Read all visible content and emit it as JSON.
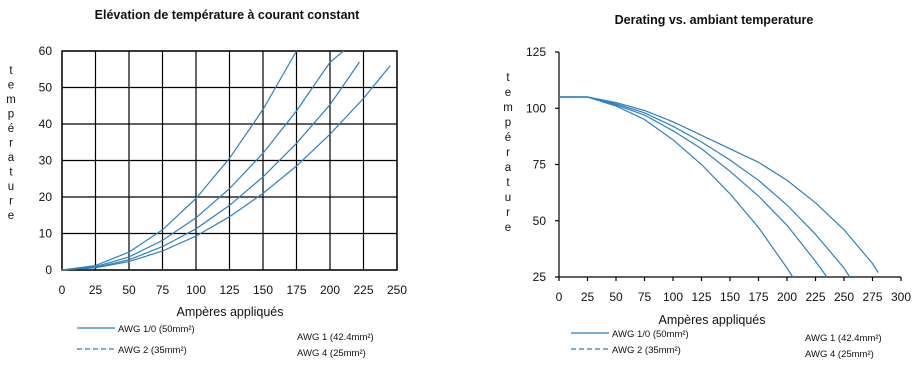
{
  "chart_data": [
    {
      "type": "line",
      "title": "Elévation de température à courant constant",
      "xlabel": "Ampères appliqués",
      "ylabel": "température",
      "xlim": [
        0,
        250
      ],
      "ylim": [
        0,
        60
      ],
      "xticks": [
        0,
        25,
        50,
        75,
        100,
        125,
        150,
        175,
        200,
        225,
        250
      ],
      "yticks": [
        0,
        10,
        20,
        30,
        40,
        50,
        60
      ],
      "grid": true,
      "legend_position": "bottom",
      "series": [
        {
          "name": "AWG 1/0 (50mm²)",
          "line_style": "solid",
          "x": [
            0,
            25,
            50,
            75,
            100,
            125,
            150,
            175,
            200,
            225,
            245
          ],
          "y": [
            0,
            0.6,
            2.3,
            5.2,
            9.3,
            14.6,
            21,
            28.5,
            37.2,
            47,
            56
          ]
        },
        {
          "name": "AWG 1 (42.4mm²)",
          "line_style": "solid",
          "x": [
            0,
            25,
            50,
            75,
            100,
            125,
            150,
            175,
            200,
            222
          ],
          "y": [
            0,
            0.7,
            2.8,
            6.4,
            11.3,
            17.7,
            25.5,
            34.7,
            45.3,
            57
          ]
        },
        {
          "name": "AWG 2 (35mm²)",
          "line_style": "dashed",
          "x": [
            0,
            25,
            50,
            75,
            100,
            125,
            150,
            175,
            200,
            210
          ],
          "y": [
            0,
            0.9,
            3.6,
            8.1,
            14.3,
            22.3,
            32,
            43.6,
            56.9,
            60
          ]
        },
        {
          "name": "AWG 4 (25mm²)",
          "line_style": "dashed",
          "x": [
            0,
            25,
            50,
            75,
            100,
            125,
            150,
            175
          ],
          "y": [
            0,
            1.2,
            4.9,
            11,
            19.6,
            30.6,
            44,
            60
          ]
        }
      ]
    },
    {
      "type": "line",
      "title": "Derating vs. ambiant temperature",
      "xlabel": "Ampères appliqués",
      "ylabel": "température",
      "xlim": [
        0,
        300
      ],
      "ylim": [
        25,
        125
      ],
      "xticks": [
        0,
        25,
        50,
        75,
        100,
        125,
        150,
        175,
        200,
        225,
        250,
        275,
        300
      ],
      "yticks": [
        25,
        50,
        75,
        100,
        125
      ],
      "grid": false,
      "legend_position": "bottom",
      "series": [
        {
          "name": "AWG 1/0 (50mm²)",
          "line_style": "solid",
          "x": [
            0,
            25,
            50,
            75,
            100,
            125,
            150,
            175,
            200,
            225,
            250,
            275,
            280
          ],
          "y": [
            105,
            105,
            102.5,
            99,
            94,
            88,
            82,
            76,
            68,
            58,
            46,
            31,
            27
          ]
        },
        {
          "name": "AWG 1 (42.4mm²)",
          "line_style": "solid",
          "x": [
            0,
            25,
            50,
            75,
            100,
            125,
            150,
            175,
            200,
            225,
            250,
            255
          ],
          "y": [
            105,
            105,
            102,
            98,
            92,
            85,
            77,
            68,
            57,
            44,
            29,
            25
          ]
        },
        {
          "name": "AWG 2 (35mm²)",
          "line_style": "dashed",
          "x": [
            0,
            25,
            50,
            75,
            100,
            125,
            150,
            175,
            200,
            225,
            235
          ],
          "y": [
            105,
            105,
            101.5,
            97,
            90,
            82,
            72,
            61,
            48,
            32,
            25
          ]
        },
        {
          "name": "AWG 4 (25mm²)",
          "line_style": "dashed",
          "x": [
            0,
            25,
            50,
            75,
            100,
            125,
            150,
            175,
            200,
            205
          ],
          "y": [
            105,
            105,
            101,
            95,
            86,
            75,
            62,
            47,
            29,
            25
          ]
        }
      ]
    }
  ]
}
